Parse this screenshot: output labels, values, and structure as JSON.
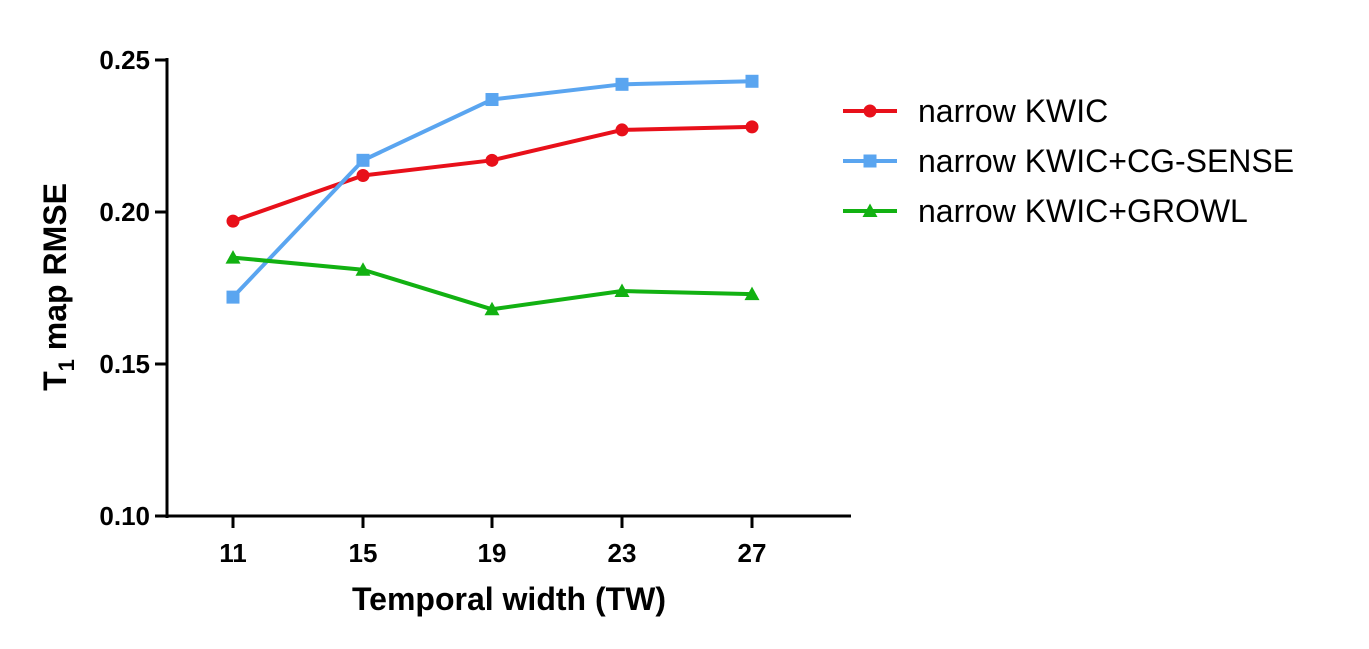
{
  "chart_data": {
    "type": "line",
    "title": "",
    "xlabel": "Temporal width (TW)",
    "ylabel_main": "T",
    "ylabel_sub": "1",
    "ylabel_rest": " map RMSE",
    "x": [
      "11",
      "15",
      "19",
      "23",
      "27"
    ],
    "y_ticks": [
      "0.10",
      "0.15",
      "0.20",
      "0.25"
    ],
    "ylim": [
      0.1,
      0.25
    ],
    "legend_position": "right",
    "series": [
      {
        "name": "narrow KWIC",
        "color": "#e8101a",
        "marker": "circle",
        "values": [
          0.197,
          0.212,
          0.217,
          0.227,
          0.228
        ]
      },
      {
        "name": "narrow KWIC+CG-SENSE",
        "color": "#5aa5f0",
        "marker": "square",
        "values": [
          0.172,
          0.217,
          0.237,
          0.242,
          0.243
        ]
      },
      {
        "name": "narrow KWIC+GROWL",
        "color": "#12b112",
        "marker": "triangle",
        "values": [
          0.185,
          0.181,
          0.168,
          0.174,
          0.173
        ]
      }
    ]
  }
}
